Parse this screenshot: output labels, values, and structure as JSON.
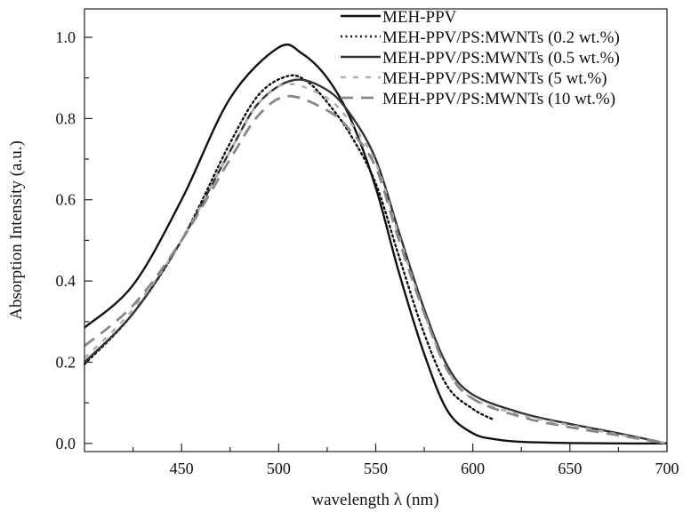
{
  "chart_data": {
    "type": "line",
    "title": "",
    "xlabel": "wavelength λ (nm)",
    "ylabel": "Absorption Intensity (a.u.)",
    "xlim": [
      400,
      700
    ],
    "ylim": [
      -0.02,
      1.07
    ],
    "xticks": [
      450,
      500,
      550,
      600,
      650,
      700
    ],
    "xtick_labels": [
      "450",
      "500",
      "550",
      "600",
      "650",
      "700"
    ],
    "yticks": [
      0.0,
      0.2,
      0.4,
      0.6,
      0.8,
      1.0
    ],
    "ytick_labels": [
      "0.0",
      "0.2",
      "0.4",
      "0.6",
      "0.8",
      "1.0"
    ],
    "grid": false,
    "legend_position": "top-right",
    "series": [
      {
        "name": "MEH-PPV",
        "style": "solid",
        "color": "#111111",
        "x": [
          400,
          425,
          450,
          475,
          500,
          512,
          525,
          537,
          550,
          562,
          575,
          587,
          600,
          612,
          625,
          650,
          675,
          700
        ],
        "y": [
          0.285,
          0.39,
          0.6,
          0.85,
          0.975,
          0.96,
          0.9,
          0.8,
          0.63,
          0.42,
          0.22,
          0.08,
          0.025,
          0.01,
          0.004,
          0.001,
          0.0,
          0.0
        ]
      },
      {
        "name": "MEH-PPV/PS:MWNTs (0.2 wt.%)",
        "style": "dotted",
        "color": "#111111",
        "x": [
          400,
          425,
          450,
          475,
          490,
          505,
          515,
          525,
          537,
          550,
          562,
          575,
          587,
          600,
          610
        ],
        "y": [
          0.195,
          0.32,
          0.5,
          0.74,
          0.86,
          0.905,
          0.89,
          0.84,
          0.76,
          0.64,
          0.46,
          0.27,
          0.14,
          0.085,
          0.06
        ]
      },
      {
        "name": "MEH-PPV/PS:MWNTs (0.5 wt.%)",
        "style": "solid",
        "color": "#333333",
        "x": [
          400,
          425,
          450,
          475,
          490,
          508,
          525,
          537,
          550,
          562,
          575,
          587,
          600,
          625,
          650,
          675,
          700
        ],
        "y": [
          0.2,
          0.32,
          0.5,
          0.72,
          0.84,
          0.895,
          0.87,
          0.81,
          0.7,
          0.52,
          0.33,
          0.19,
          0.12,
          0.075,
          0.048,
          0.025,
          0.0
        ]
      },
      {
        "name": "MEH-PPV/PS:MWNTs (5 wt.%)",
        "style": "short-dash",
        "color": "#b0b0b0",
        "x": [
          400,
          425,
          450,
          475,
          490,
          505,
          525,
          537,
          550,
          562,
          575,
          587,
          600,
          625,
          650,
          675,
          700
        ],
        "y": [
          0.21,
          0.33,
          0.5,
          0.72,
          0.84,
          0.885,
          0.85,
          0.79,
          0.69,
          0.51,
          0.32,
          0.18,
          0.11,
          0.07,
          0.045,
          0.022,
          0.0
        ]
      },
      {
        "name": "MEH-PPV/PS:MWNTs (10 wt.%)",
        "style": "long-dash",
        "color": "#888888",
        "x": [
          400,
          425,
          450,
          475,
          490,
          505,
          525,
          537,
          550,
          562,
          575,
          587,
          600,
          625,
          650,
          675,
          700
        ],
        "y": [
          0.24,
          0.34,
          0.5,
          0.7,
          0.81,
          0.855,
          0.82,
          0.77,
          0.68,
          0.5,
          0.32,
          0.18,
          0.11,
          0.065,
          0.04,
          0.02,
          0.0
        ]
      }
    ]
  }
}
